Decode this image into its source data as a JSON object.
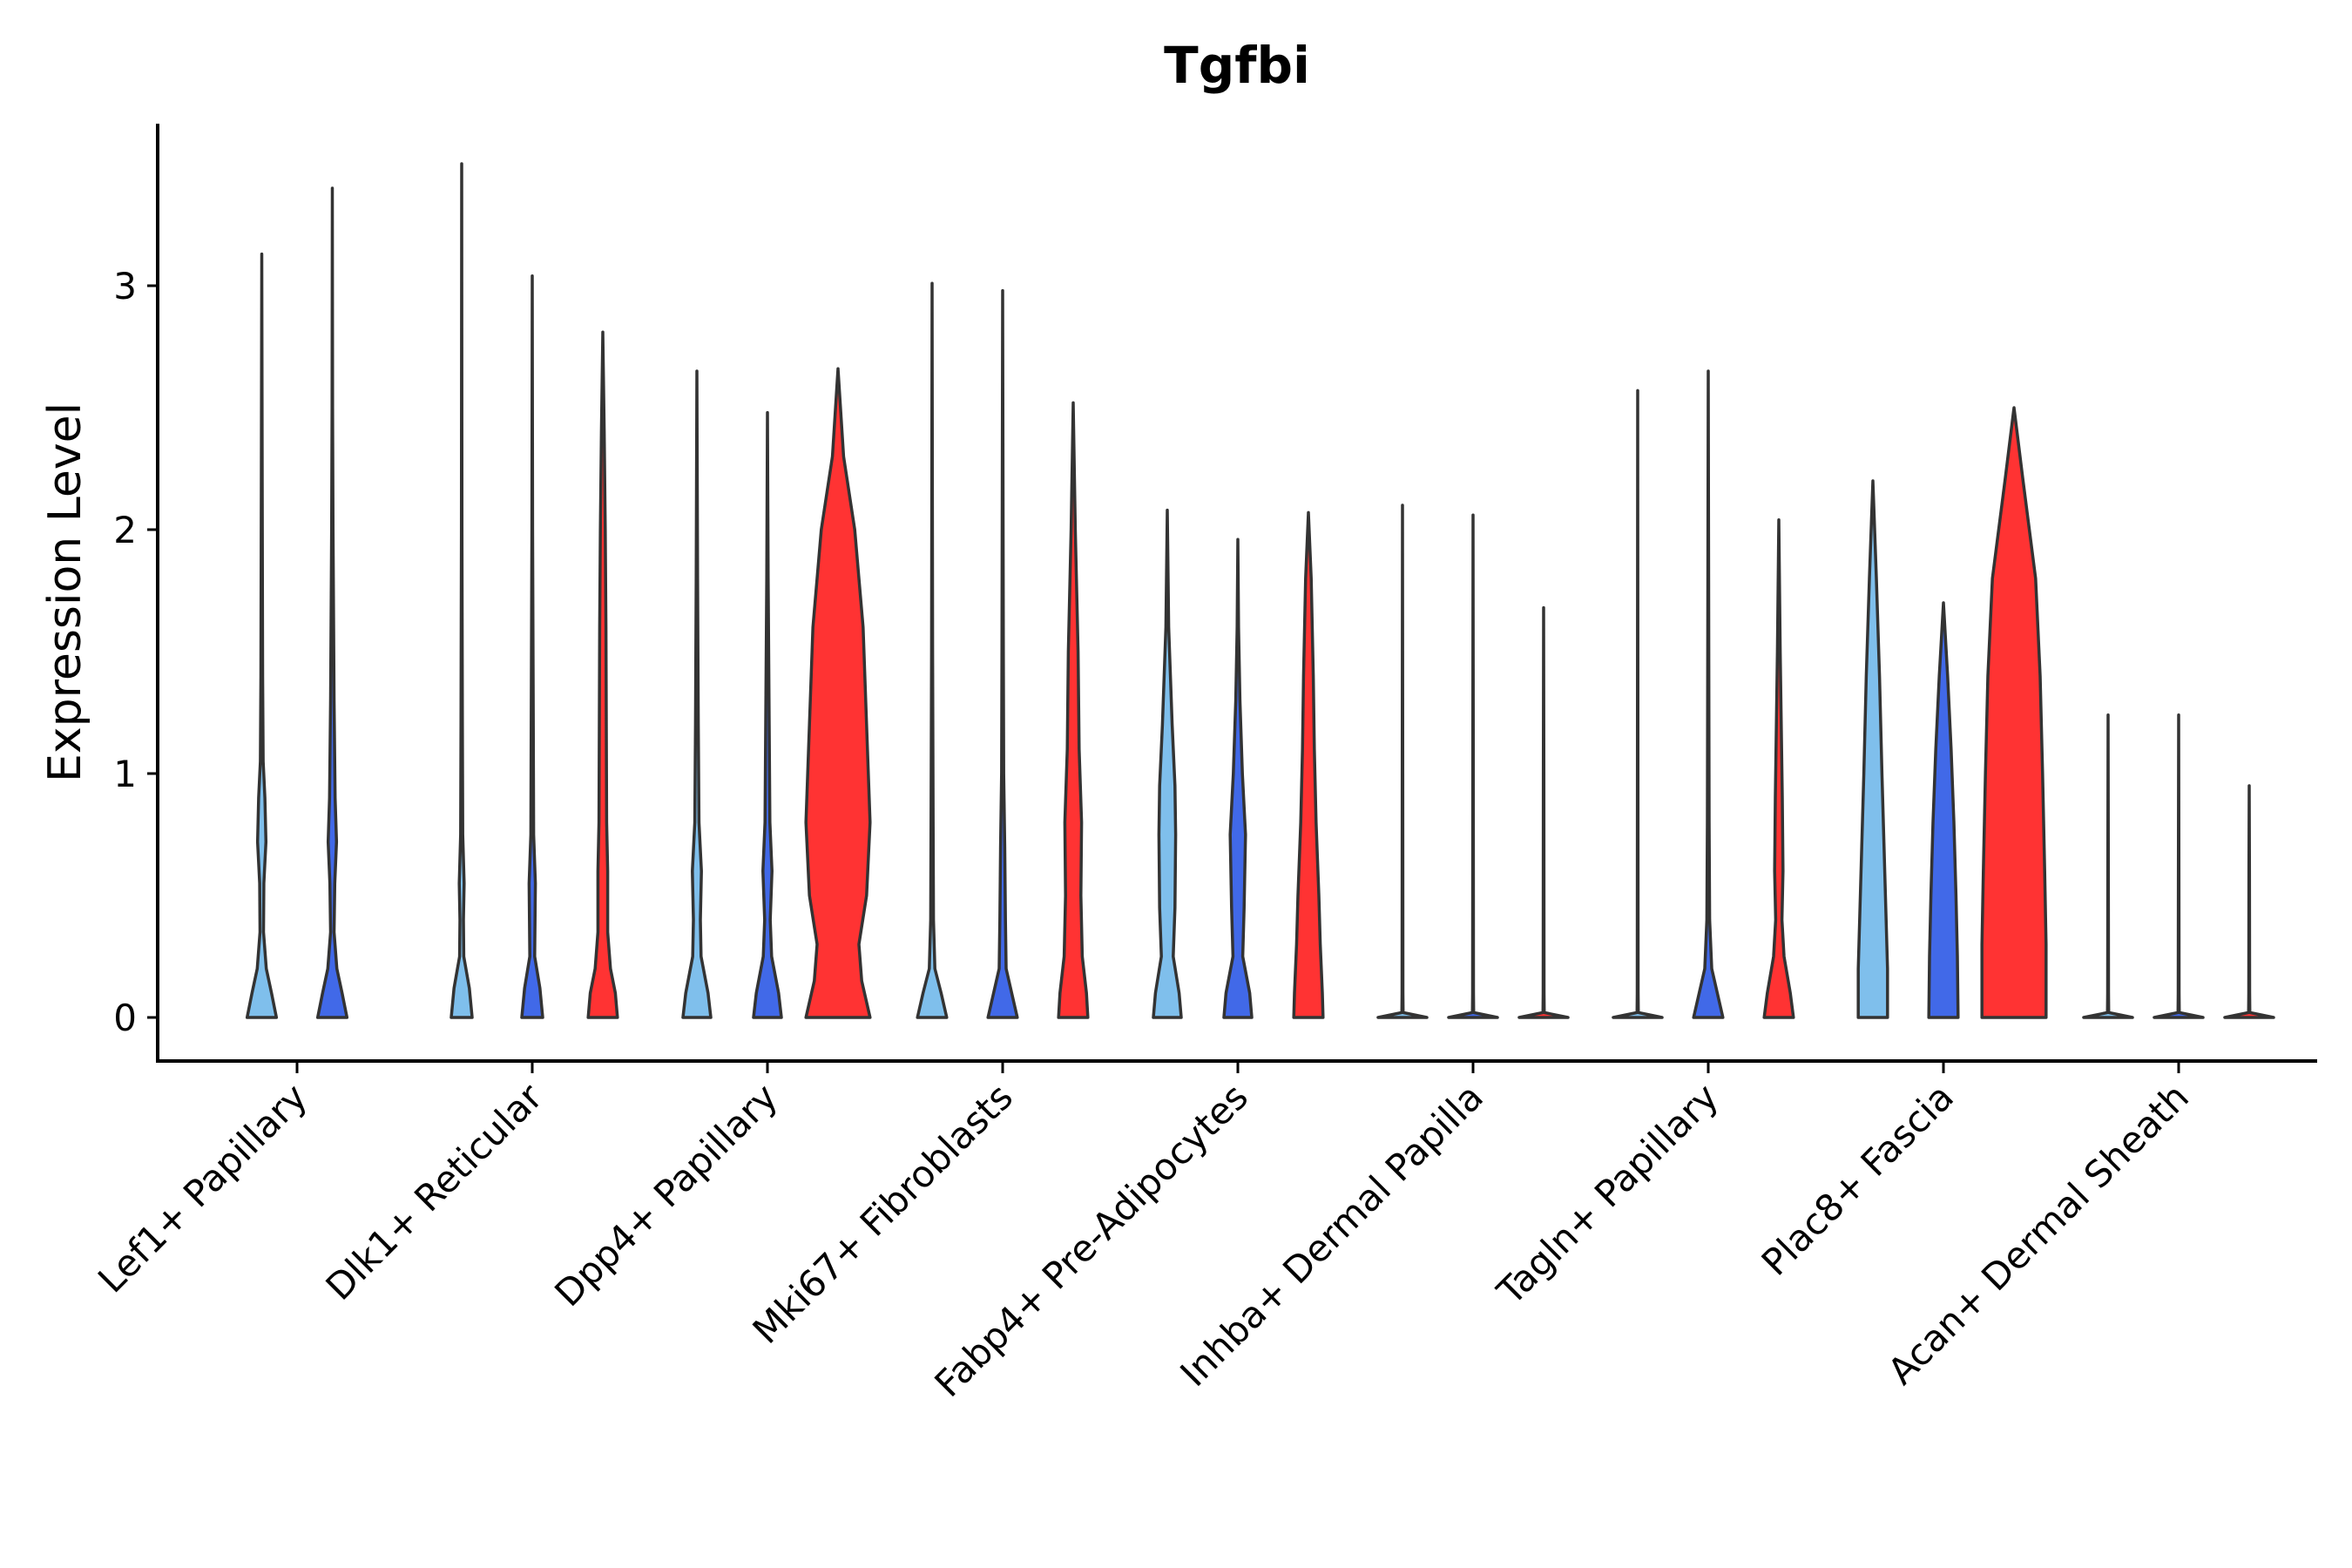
{
  "chart_data": {
    "type": "violin",
    "title": "Tgfbi",
    "xlabel": "",
    "ylabel": "Expression Level",
    "ylim": [
      -0.18,
      3.67
    ],
    "yticks": [
      0,
      1,
      2,
      3
    ],
    "grid": false,
    "legend": "none",
    "colors": {
      "group_1": "#7fbfec",
      "group_2": "#4169e8",
      "group_3": "#ff3333"
    },
    "categories": [
      {
        "label": "Lef1+ Papillary",
        "violins": [
          {
            "group": "group_1",
            "max": 3.13,
            "profile": [
              [
                0,
                0.42
              ],
              [
                0.1,
                0.28
              ],
              [
                0.2,
                0.13
              ],
              [
                0.35,
                0.05
              ],
              [
                0.55,
                0.06
              ],
              [
                0.72,
                0.12
              ],
              [
                0.9,
                0.09
              ],
              [
                1.05,
                0.04
              ],
              [
                1.4,
                0.025
              ],
              [
                2.2,
                0.012
              ],
              [
                3.13,
                0
              ]
            ]
          },
          {
            "group": "group_2",
            "max": 3.4,
            "profile": [
              [
                0,
                0.42
              ],
              [
                0.1,
                0.28
              ],
              [
                0.2,
                0.13
              ],
              [
                0.35,
                0.05
              ],
              [
                0.55,
                0.07
              ],
              [
                0.72,
                0.12
              ],
              [
                0.9,
                0.08
              ],
              [
                1.3,
                0.05
              ],
              [
                2.0,
                0.02
              ],
              [
                2.5,
                0.008
              ],
              [
                3.4,
                0
              ]
            ]
          }
        ]
      },
      {
        "label": "Dlk1+ Reticular",
        "violins": [
          {
            "group": "group_1",
            "max": 3.5,
            "profile": [
              [
                0,
                0.3
              ],
              [
                0.12,
                0.22
              ],
              [
                0.25,
                0.06
              ],
              [
                0.4,
                0.05
              ],
              [
                0.55,
                0.07
              ],
              [
                0.75,
                0.03
              ],
              [
                1.2,
                0.02
              ],
              [
                2.0,
                0.008
              ],
              [
                3.5,
                0
              ]
            ]
          },
          {
            "group": "group_2",
            "max": 3.04,
            "profile": [
              [
                0,
                0.3
              ],
              [
                0.12,
                0.22
              ],
              [
                0.25,
                0.07
              ],
              [
                0.4,
                0.08
              ],
              [
                0.55,
                0.09
              ],
              [
                0.75,
                0.04
              ],
              [
                1.2,
                0.03
              ],
              [
                2.0,
                0.01
              ],
              [
                3.04,
                0
              ]
            ]
          },
          {
            "group": "group_3",
            "max": 2.81,
            "profile": [
              [
                0,
                0.42
              ],
              [
                0.1,
                0.36
              ],
              [
                0.2,
                0.22
              ],
              [
                0.35,
                0.14
              ],
              [
                0.6,
                0.14
              ],
              [
                0.8,
                0.11
              ],
              [
                1.2,
                0.1
              ],
              [
                1.6,
                0.09
              ],
              [
                2.0,
                0.07
              ],
              [
                2.4,
                0.04
              ],
              [
                2.81,
                0
              ]
            ]
          }
        ]
      },
      {
        "label": "Dpp4+ Papillary",
        "violins": [
          {
            "group": "group_1",
            "max": 2.65,
            "profile": [
              [
                0,
                0.4
              ],
              [
                0.1,
                0.32
              ],
              [
                0.25,
                0.12
              ],
              [
                0.4,
                0.1
              ],
              [
                0.6,
                0.13
              ],
              [
                0.8,
                0.06
              ],
              [
                1.2,
                0.04
              ],
              [
                1.8,
                0.02
              ],
              [
                2.65,
                0
              ]
            ]
          },
          {
            "group": "group_2",
            "max": 2.48,
            "profile": [
              [
                0,
                0.4
              ],
              [
                0.1,
                0.32
              ],
              [
                0.25,
                0.12
              ],
              [
                0.4,
                0.08
              ],
              [
                0.6,
                0.13
              ],
              [
                0.8,
                0.07
              ],
              [
                1.2,
                0.05
              ],
              [
                1.8,
                0.02
              ],
              [
                2.48,
                0
              ]
            ]
          },
          {
            "group": "group_3",
            "max": 2.66,
            "profile": [
              [
                0,
                0.92
              ],
              [
                0.15,
                0.68
              ],
              [
                0.3,
                0.6
              ],
              [
                0.5,
                0.82
              ],
              [
                0.8,
                0.92
              ],
              [
                1.2,
                0.82
              ],
              [
                1.6,
                0.72
              ],
              [
                2.0,
                0.48
              ],
              [
                2.3,
                0.16
              ],
              [
                2.66,
                0
              ]
            ]
          }
        ]
      },
      {
        "label": "Mki67+ Fibroblasts",
        "violins": [
          {
            "group": "group_1",
            "max": 3.01,
            "profile": [
              [
                0,
                0.42
              ],
              [
                0.1,
                0.26
              ],
              [
                0.2,
                0.08
              ],
              [
                0.4,
                0.04
              ],
              [
                0.8,
                0.03
              ],
              [
                1.5,
                0.015
              ],
              [
                3.01,
                0
              ]
            ]
          },
          {
            "group": "group_2",
            "max": 2.98,
            "profile": [
              [
                0,
                0.42
              ],
              [
                0.1,
                0.26
              ],
              [
                0.2,
                0.1
              ],
              [
                0.4,
                0.08
              ],
              [
                0.7,
                0.06
              ],
              [
                1.0,
                0.03
              ],
              [
                1.5,
                0.02
              ],
              [
                2.98,
                0
              ]
            ]
          },
          {
            "group": "group_3",
            "max": 2.52,
            "profile": [
              [
                0,
                0.42
              ],
              [
                0.1,
                0.38
              ],
              [
                0.25,
                0.26
              ],
              [
                0.5,
                0.22
              ],
              [
                0.8,
                0.24
              ],
              [
                1.1,
                0.17
              ],
              [
                1.5,
                0.14
              ],
              [
                2.0,
                0.06
              ],
              [
                2.52,
                0
              ]
            ]
          }
        ]
      },
      {
        "label": "Fabp4+ Pre-Adipocytes",
        "violins": [
          {
            "group": "group_1",
            "max": 2.08,
            "profile": [
              [
                0,
                0.4
              ],
              [
                0.1,
                0.34
              ],
              [
                0.25,
                0.17
              ],
              [
                0.45,
                0.22
              ],
              [
                0.75,
                0.24
              ],
              [
                0.95,
                0.22
              ],
              [
                1.2,
                0.14
              ],
              [
                1.6,
                0.04
              ],
              [
                2.08,
                0
              ]
            ]
          },
          {
            "group": "group_2",
            "max": 1.96,
            "profile": [
              [
                0,
                0.4
              ],
              [
                0.1,
                0.34
              ],
              [
                0.25,
                0.14
              ],
              [
                0.45,
                0.18
              ],
              [
                0.75,
                0.22
              ],
              [
                1.0,
                0.13
              ],
              [
                1.3,
                0.06
              ],
              [
                1.6,
                0.02
              ],
              [
                1.96,
                0
              ]
            ]
          },
          {
            "group": "group_3",
            "max": 2.07,
            "profile": [
              [
                0,
                0.42
              ],
              [
                0.1,
                0.4
              ],
              [
                0.3,
                0.34
              ],
              [
                0.5,
                0.3
              ],
              [
                0.8,
                0.22
              ],
              [
                1.1,
                0.17
              ],
              [
                1.4,
                0.14
              ],
              [
                1.8,
                0.08
              ],
              [
                2.07,
                0
              ]
            ]
          }
        ]
      },
      {
        "label": "Inhba+ Dermal Papilla",
        "violins": [
          {
            "group": "group_1",
            "max": 2.1,
            "profile": [
              [
                0,
                0.7
              ],
              [
                0.02,
                0.018
              ],
              [
                0.1,
                0.012
              ],
              [
                1.0,
                0.008
              ],
              [
                2.1,
                0
              ]
            ]
          },
          {
            "group": "group_2",
            "max": 2.06,
            "profile": [
              [
                0,
                0.7
              ],
              [
                0.02,
                0.018
              ],
              [
                0.1,
                0.012
              ],
              [
                1.0,
                0.008
              ],
              [
                2.06,
                0
              ]
            ]
          },
          {
            "group": "group_3",
            "max": 1.68,
            "profile": [
              [
                0,
                0.7
              ],
              [
                0.02,
                0.018
              ],
              [
                0.1,
                0.012
              ],
              [
                1.0,
                0.008
              ],
              [
                1.68,
                0
              ]
            ]
          }
        ]
      },
      {
        "label": "Tagln+ Papillary",
        "violins": [
          {
            "group": "group_1",
            "max": 2.57,
            "profile": [
              [
                0,
                0.7
              ],
              [
                0.02,
                0.018
              ],
              [
                0.1,
                0.012
              ],
              [
                1.0,
                0.008
              ],
              [
                2.57,
                0
              ]
            ]
          },
          {
            "group": "group_2",
            "max": 2.65,
            "profile": [
              [
                0,
                0.42
              ],
              [
                0.1,
                0.26
              ],
              [
                0.2,
                0.1
              ],
              [
                0.4,
                0.04
              ],
              [
                0.8,
                0.025
              ],
              [
                1.5,
                0.015
              ],
              [
                2.65,
                0
              ]
            ]
          },
          {
            "group": "group_3",
            "max": 2.04,
            "profile": [
              [
                0,
                0.42
              ],
              [
                0.1,
                0.33
              ],
              [
                0.25,
                0.15
              ],
              [
                0.4,
                0.09
              ],
              [
                0.6,
                0.12
              ],
              [
                0.9,
                0.1
              ],
              [
                1.2,
                0.07
              ],
              [
                1.5,
                0.04
              ],
              [
                2.04,
                0
              ]
            ]
          }
        ]
      },
      {
        "label": "Plac8+ Fascia",
        "violins": [
          {
            "group": "group_1",
            "max": 2.2,
            "profile": [
              [
                0,
                0.42
              ],
              [
                0.2,
                0.42
              ],
              [
                0.4,
                0.38
              ],
              [
                0.7,
                0.32
              ],
              [
                1.0,
                0.26
              ],
              [
                1.4,
                0.19
              ],
              [
                1.8,
                0.1
              ],
              [
                2.2,
                0
              ]
            ]
          },
          {
            "group": "group_2",
            "max": 1.7,
            "profile": [
              [
                0,
                0.42
              ],
              [
                0.25,
                0.4
              ],
              [
                0.5,
                0.36
              ],
              [
                0.8,
                0.3
              ],
              [
                1.1,
                0.22
              ],
              [
                1.4,
                0.12
              ],
              [
                1.7,
                0
              ]
            ]
          },
          {
            "group": "group_3",
            "max": 2.5,
            "profile": [
              [
                0,
                0.92
              ],
              [
                0.3,
                0.92
              ],
              [
                0.6,
                0.88
              ],
              [
                1.0,
                0.82
              ],
              [
                1.4,
                0.75
              ],
              [
                1.8,
                0.62
              ],
              [
                2.2,
                0.26
              ],
              [
                2.5,
                0
              ]
            ]
          }
        ]
      },
      {
        "label": "Acan+ Dermal Sheath",
        "violins": [
          {
            "group": "group_1",
            "max": 1.24,
            "profile": [
              [
                0,
                0.7
              ],
              [
                0.02,
                0.018
              ],
              [
                0.1,
                0.012
              ],
              [
                0.6,
                0.008
              ],
              [
                1.24,
                0
              ]
            ]
          },
          {
            "group": "group_2",
            "max": 1.24,
            "profile": [
              [
                0,
                0.7
              ],
              [
                0.02,
                0.018
              ],
              [
                0.1,
                0.012
              ],
              [
                0.6,
                0.008
              ],
              [
                1.24,
                0
              ]
            ]
          },
          {
            "group": "group_3",
            "max": 0.95,
            "profile": [
              [
                0,
                0.7
              ],
              [
                0.02,
                0.018
              ],
              [
                0.1,
                0.012
              ],
              [
                0.6,
                0.008
              ],
              [
                0.95,
                0
              ]
            ]
          }
        ]
      }
    ]
  }
}
